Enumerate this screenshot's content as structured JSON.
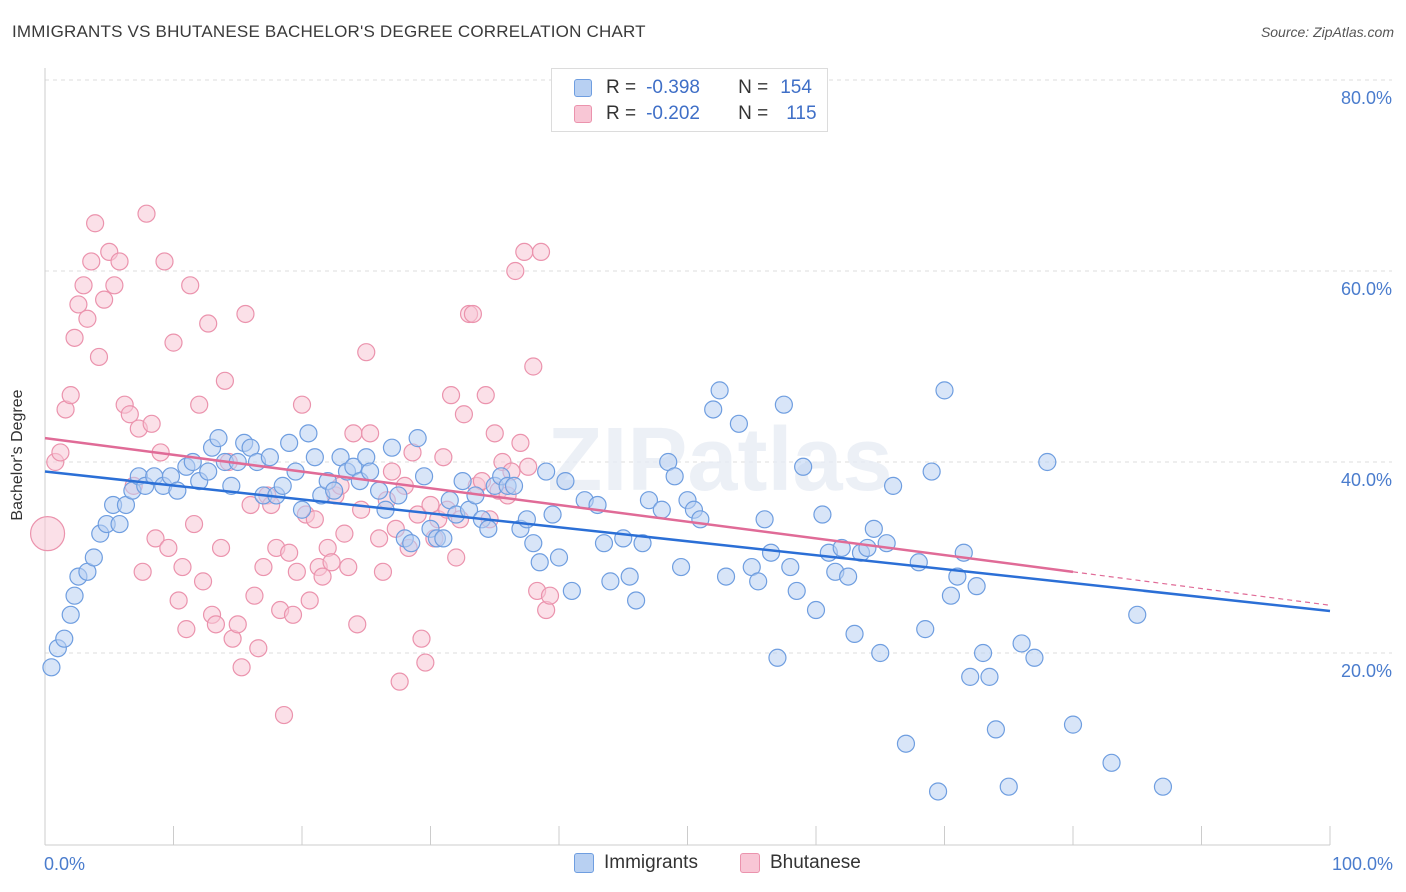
{
  "title": "IMMIGRANTS VS BHUTANESE BACHELOR'S DEGREE CORRELATION CHART",
  "source": "Source: ZipAtlas.com",
  "watermark": "ZIPatlas",
  "legend": {
    "rows": [
      {
        "r_label": "R =",
        "r_value": "-0.398",
        "n_label": "N =",
        "n_value": "154"
      },
      {
        "r_label": "R =",
        "r_value": "-0.202",
        "n_label": "N =",
        "n_value": "115"
      }
    ]
  },
  "bottom_legend": [
    "Immigrants",
    "Bhutanese"
  ],
  "colors": {
    "blue_fill": "#b8d0f2",
    "blue_stroke": "#6f9ee0",
    "blue_line": "#2b6fd6",
    "pink_fill": "#f8c6d5",
    "pink_stroke": "#eb93ad",
    "pink_line": "#e06b97",
    "tick_color": "#4a7ccd",
    "grid": "#dddddd"
  },
  "chart_data": {
    "type": "scatter",
    "title": "IMMIGRANTS VS BHUTANESE BACHELOR'S DEGREE CORRELATION CHART",
    "xlabel": "",
    "ylabel": "Bachelor's Degree",
    "xlim": [
      0,
      100
    ],
    "ylim": [
      0,
      81
    ],
    "x_tick_labels": [
      "0.0%",
      "100.0%"
    ],
    "y_ticks": [
      20,
      40,
      60,
      80
    ],
    "y_tick_labels": [
      "20.0%",
      "40.0%",
      "60.0%",
      "80.0%"
    ],
    "grid": "horizontal dashed",
    "legend_position": "top-center",
    "series": [
      {
        "name": "Immigrants",
        "r": -0.398,
        "n": 154,
        "trend": {
          "x": [
            0,
            100
          ],
          "y": [
            39.0,
            24.4
          ]
        },
        "points": [
          [
            0.5,
            18.5
          ],
          [
            1,
            20.5
          ],
          [
            1.5,
            21.5
          ],
          [
            2,
            24
          ],
          [
            2.3,
            26
          ],
          [
            2.6,
            28
          ],
          [
            3.3,
            28.5
          ],
          [
            3.8,
            30
          ],
          [
            4.3,
            32.5
          ],
          [
            4.8,
            33.5
          ],
          [
            5.3,
            35.5
          ],
          [
            5.8,
            33.5
          ],
          [
            6.3,
            35.5
          ],
          [
            6.8,
            37
          ],
          [
            7.3,
            38.5
          ],
          [
            7.8,
            37.5
          ],
          [
            8.5,
            38.5
          ],
          [
            9.2,
            37.5
          ],
          [
            9.8,
            38.5
          ],
          [
            10.3,
            37
          ],
          [
            11,
            39.5
          ],
          [
            11.5,
            40
          ],
          [
            12,
            38
          ],
          [
            12.7,
            39
          ],
          [
            13,
            41.5
          ],
          [
            13.5,
            42.5
          ],
          [
            14,
            40
          ],
          [
            14.5,
            37.5
          ],
          [
            15,
            40
          ],
          [
            15.5,
            42
          ],
          [
            16,
            41.5
          ],
          [
            16.5,
            40
          ],
          [
            17,
            36.5
          ],
          [
            17.5,
            40.5
          ],
          [
            18,
            36.5
          ],
          [
            18.5,
            37.5
          ],
          [
            19,
            42
          ],
          [
            19.5,
            39
          ],
          [
            20,
            35
          ],
          [
            20.5,
            43
          ],
          [
            21,
            40.5
          ],
          [
            21.5,
            36.5
          ],
          [
            22,
            38
          ],
          [
            22.5,
            37
          ],
          [
            23,
            40.5
          ],
          [
            23.5,
            39
          ],
          [
            24,
            39.5
          ],
          [
            24.5,
            38
          ],
          [
            25,
            40.5
          ],
          [
            25.3,
            39
          ],
          [
            26,
            37
          ],
          [
            26.5,
            35
          ],
          [
            27,
            41.5
          ],
          [
            27.5,
            36.5
          ],
          [
            28,
            32
          ],
          [
            28.5,
            31.5
          ],
          [
            29,
            42.5
          ],
          [
            29.5,
            38.5
          ],
          [
            30,
            33
          ],
          [
            30.5,
            32
          ],
          [
            31,
            32
          ],
          [
            31.5,
            36
          ],
          [
            32,
            34.5
          ],
          [
            32.5,
            38
          ],
          [
            33,
            35
          ],
          [
            33.5,
            36.5
          ],
          [
            34,
            34
          ],
          [
            34.5,
            33
          ],
          [
            35,
            37.5
          ],
          [
            35.5,
            38.5
          ],
          [
            36,
            37.5
          ],
          [
            36.5,
            37.5
          ],
          [
            37,
            33
          ],
          [
            37.5,
            34
          ],
          [
            38,
            31.5
          ],
          [
            38.5,
            29.5
          ],
          [
            39,
            39
          ],
          [
            39.5,
            34.5
          ],
          [
            40,
            30
          ],
          [
            40.5,
            38
          ],
          [
            41,
            26.5
          ],
          [
            42,
            36
          ],
          [
            43,
            35.5
          ],
          [
            43.5,
            31.5
          ],
          [
            44,
            27.5
          ],
          [
            45,
            32
          ],
          [
            45.5,
            28
          ],
          [
            46,
            25.5
          ],
          [
            46.5,
            31.5
          ],
          [
            47,
            36
          ],
          [
            48,
            35
          ],
          [
            48.5,
            40
          ],
          [
            49,
            38.5
          ],
          [
            49.5,
            29
          ],
          [
            50,
            36
          ],
          [
            50.5,
            35
          ],
          [
            51,
            34
          ],
          [
            52,
            45.5
          ],
          [
            52.5,
            47.5
          ],
          [
            53,
            28
          ],
          [
            54,
            44
          ],
          [
            55,
            29
          ],
          [
            55.5,
            27.5
          ],
          [
            56,
            34
          ],
          [
            56.5,
            30.5
          ],
          [
            57,
            19.5
          ],
          [
            57.5,
            46
          ],
          [
            58,
            29
          ],
          [
            58.5,
            26.5
          ],
          [
            59,
            39.5
          ],
          [
            60,
            24.5
          ],
          [
            60.5,
            34.5
          ],
          [
            61,
            30.5
          ],
          [
            61.5,
            28.5
          ],
          [
            62,
            31
          ],
          [
            62.5,
            28
          ],
          [
            63,
            22
          ],
          [
            63.5,
            30.5
          ],
          [
            64,
            31
          ],
          [
            64.5,
            33
          ],
          [
            65,
            20
          ],
          [
            65.5,
            31.5
          ],
          [
            66,
            37.5
          ],
          [
            67,
            10.5
          ],
          [
            68,
            29.5
          ],
          [
            68.5,
            22.5
          ],
          [
            69,
            39
          ],
          [
            69.5,
            5.5
          ],
          [
            70,
            47.5
          ],
          [
            70.5,
            26
          ],
          [
            71,
            28
          ],
          [
            71.5,
            30.5
          ],
          [
            72,
            17.5
          ],
          [
            72.5,
            27
          ],
          [
            73,
            20
          ],
          [
            73.5,
            17.5
          ],
          [
            74,
            12
          ],
          [
            75,
            6
          ],
          [
            76,
            21
          ],
          [
            77,
            19.5
          ],
          [
            78,
            40
          ],
          [
            80,
            12.5
          ],
          [
            83,
            8.5
          ],
          [
            85,
            24
          ],
          [
            87,
            6
          ]
        ]
      },
      {
        "name": "Bhutanese",
        "r": -0.202,
        "n": 115,
        "trend": {
          "x": [
            0,
            80
          ],
          "y": [
            42.5,
            28.5
          ]
        },
        "trend_dashed": {
          "x": [
            80,
            100
          ],
          "y": [
            28.5,
            25.0
          ]
        },
        "points": [
          [
            0.2,
            32.5
          ],
          [
            0.8,
            40
          ],
          [
            1.2,
            41
          ],
          [
            1.6,
            45.5
          ],
          [
            2,
            47
          ],
          [
            2.3,
            53
          ],
          [
            2.6,
            56.5
          ],
          [
            3,
            58.5
          ],
          [
            3.3,
            55
          ],
          [
            3.6,
            61
          ],
          [
            3.9,
            65
          ],
          [
            4.2,
            51
          ],
          [
            4.6,
            57
          ],
          [
            5,
            62
          ],
          [
            5.4,
            58.5
          ],
          [
            5.8,
            61
          ],
          [
            6.2,
            46
          ],
          [
            6.6,
            45
          ],
          [
            6.9,
            37.5
          ],
          [
            7.3,
            43.5
          ],
          [
            7.6,
            28.5
          ],
          [
            7.9,
            66
          ],
          [
            8.3,
            44
          ],
          [
            8.6,
            32
          ],
          [
            9,
            41
          ],
          [
            9.3,
            61
          ],
          [
            9.6,
            31
          ],
          [
            10,
            52.5
          ],
          [
            10.4,
            25.5
          ],
          [
            10.7,
            29
          ],
          [
            11,
            22.5
          ],
          [
            11.3,
            58.5
          ],
          [
            11.6,
            33.5
          ],
          [
            12,
            46
          ],
          [
            12.3,
            27.5
          ],
          [
            12.7,
            54.5
          ],
          [
            13,
            24
          ],
          [
            13.3,
            23
          ],
          [
            13.7,
            31
          ],
          [
            14,
            48.5
          ],
          [
            14.3,
            40
          ],
          [
            14.6,
            21.5
          ],
          [
            15,
            23
          ],
          [
            15.3,
            18.5
          ],
          [
            15.6,
            55.5
          ],
          [
            16,
            35.5
          ],
          [
            16.3,
            26
          ],
          [
            16.6,
            20.5
          ],
          [
            17,
            29
          ],
          [
            17.3,
            36.5
          ],
          [
            17.6,
            35.5
          ],
          [
            18,
            31
          ],
          [
            18.3,
            24.5
          ],
          [
            18.6,
            13.5
          ],
          [
            19,
            30.5
          ],
          [
            19.3,
            24
          ],
          [
            19.6,
            28.5
          ],
          [
            20,
            46
          ],
          [
            20.3,
            34.5
          ],
          [
            20.6,
            25.5
          ],
          [
            21,
            34
          ],
          [
            21.3,
            29
          ],
          [
            21.6,
            28
          ],
          [
            22,
            31
          ],
          [
            22.3,
            29.5
          ],
          [
            22.6,
            36.5
          ],
          [
            23,
            37.5
          ],
          [
            23.3,
            32.5
          ],
          [
            23.6,
            29
          ],
          [
            24,
            43
          ],
          [
            24.3,
            23
          ],
          [
            24.6,
            35
          ],
          [
            25,
            51.5
          ],
          [
            25.3,
            43
          ],
          [
            26,
            32
          ],
          [
            26.3,
            28.5
          ],
          [
            26.6,
            36
          ],
          [
            27,
            39
          ],
          [
            27.3,
            33
          ],
          [
            27.6,
            17
          ],
          [
            28,
            37.5
          ],
          [
            28.3,
            31
          ],
          [
            28.6,
            41
          ],
          [
            29,
            34.5
          ],
          [
            29.3,
            21.5
          ],
          [
            29.6,
            19
          ],
          [
            30,
            35.5
          ],
          [
            30.3,
            32
          ],
          [
            30.6,
            34
          ],
          [
            31,
            40.5
          ],
          [
            31.3,
            35
          ],
          [
            31.6,
            47
          ],
          [
            32,
            30
          ],
          [
            32.3,
            34
          ],
          [
            32.6,
            45
          ],
          [
            33,
            55.5
          ],
          [
            33.3,
            55.5
          ],
          [
            33.6,
            37.5
          ],
          [
            34,
            38
          ],
          [
            34.3,
            47
          ],
          [
            34.6,
            34
          ],
          [
            35,
            43
          ],
          [
            35.3,
            37
          ],
          [
            35.6,
            40
          ],
          [
            36,
            36.5
          ],
          [
            36.3,
            39
          ],
          [
            36.6,
            60
          ],
          [
            37,
            42
          ],
          [
            37.3,
            62
          ],
          [
            37.6,
            39.5
          ],
          [
            38,
            50
          ],
          [
            38.3,
            26.5
          ],
          [
            38.6,
            62
          ],
          [
            39,
            24.5
          ],
          [
            39.3,
            26
          ]
        ]
      }
    ]
  }
}
